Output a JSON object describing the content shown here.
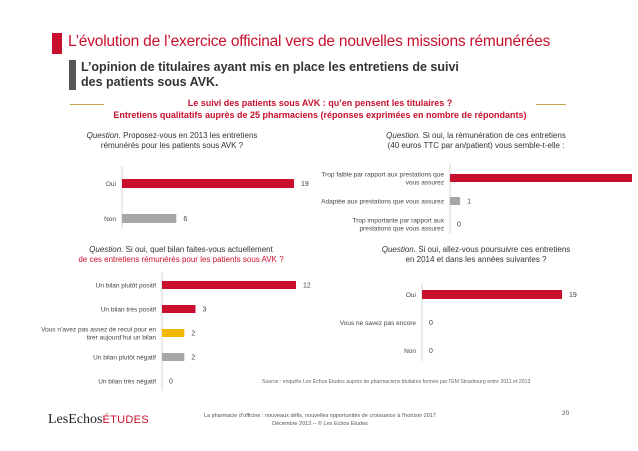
{
  "slide": {
    "title": "L’évolution de l’exercice officinal vers de nouvelles missions rémunérées",
    "subtitle_line1": "L’opinion de titulaires ayant mis en place les entretiens de suivi",
    "subtitle_line2": "des patients sous AVK.",
    "study_line1": "Le suivi des patients sous AVK : qu’en pensent les titulaires ?",
    "study_line2": "Entretiens qualitatifs auprès de 25 pharmaciens (réponses exprimées en nombre de répondants)",
    "source": "Source : enquête Les Echos Etudes auprès de pharmaciens titulaires formés par l’EM Strasbourg entre 2011 et 2013",
    "footer_line1": "La pharmacie d’officine : nouveaux défis, nouvelles opportunités de croissance à l’horizon 2017",
    "footer_line2": "Décembre 2013 -- © Les Echos Etudes",
    "page_number": "20",
    "logo_main": "LesEchos",
    "logo_sub": "ÉTUDES"
  },
  "colors": {
    "accent_red": "#c8102e",
    "grey": "#a6a6a6",
    "yellow": "#f2b705"
  },
  "questions": {
    "q1_label": "Question.",
    "q1_text_a": " Proposez-vous en 2013 les entretiens",
    "q1_text_b": "rémunérés pour les patients sous AVK ?",
    "q2_label": "Question.",
    "q2_text_a": " Si oui, la rémunération de ces entretiens",
    "q2_text_b": "(40 euros TTC par an/patient) vous semble-t-elle :",
    "q3_label": "Question.",
    "q3_text_a": " Si oui, quel bilan faites-vous actuellement",
    "q3_text_b": "de ces entretiens rémunérés pour les patients sous AVK ?",
    "q4_label": "Question.",
    "q4_text_a": " Si oui, allez-vous poursuivre ces entretiens",
    "q4_text_b": "en 2014 et dans les années suivantes ?"
  },
  "chart_data": [
    {
      "type": "bar",
      "orientation": "horizontal",
      "categories": [
        "Oui",
        "Non"
      ],
      "values": [
        19,
        6
      ],
      "colors": [
        "#c8102e",
        "#a6a6a6"
      ],
      "xlim": [
        0,
        19
      ]
    },
    {
      "type": "bar",
      "orientation": "horizontal",
      "categories": [
        [
          "Trop faible par rapport aux prestations que",
          "vous assurez"
        ],
        [
          "Adaptée aux prestations que vous assurez"
        ],
        [
          "Trop importante par rapport aux",
          "prestations que vous assurez"
        ]
      ],
      "values": [
        18,
        1,
        0
      ],
      "colors": [
        "#c8102e",
        "#a6a6a6",
        "#a6a6a6"
      ],
      "xlim": [
        0,
        18
      ]
    },
    {
      "type": "bar",
      "orientation": "horizontal",
      "categories": [
        [
          "Un bilan plutôt positif"
        ],
        [
          "Un bilan très positif"
        ],
        [
          "Vous n’avez pas assez de recul pour en",
          "tirer aujourd’hui un bilan"
        ],
        [
          "Un bilan plutôt négatif"
        ],
        [
          "Un bilan très négatif"
        ]
      ],
      "values": [
        12,
        3,
        2,
        2,
        0
      ],
      "colors": [
        "#c8102e",
        "#c8102e",
        "#f2b705",
        "#a6a6a6",
        "#a6a6a6"
      ],
      "xlim": [
        0,
        12
      ]
    },
    {
      "type": "bar",
      "orientation": "horizontal",
      "categories": [
        [
          "Oui"
        ],
        [
          "Vous ne savez pas encore"
        ],
        [
          "Non"
        ]
      ],
      "values": [
        19,
        0,
        0
      ],
      "colors": [
        "#c8102e",
        "#a6a6a6",
        "#a6a6a6"
      ],
      "xlim": [
        0,
        19
      ]
    }
  ]
}
